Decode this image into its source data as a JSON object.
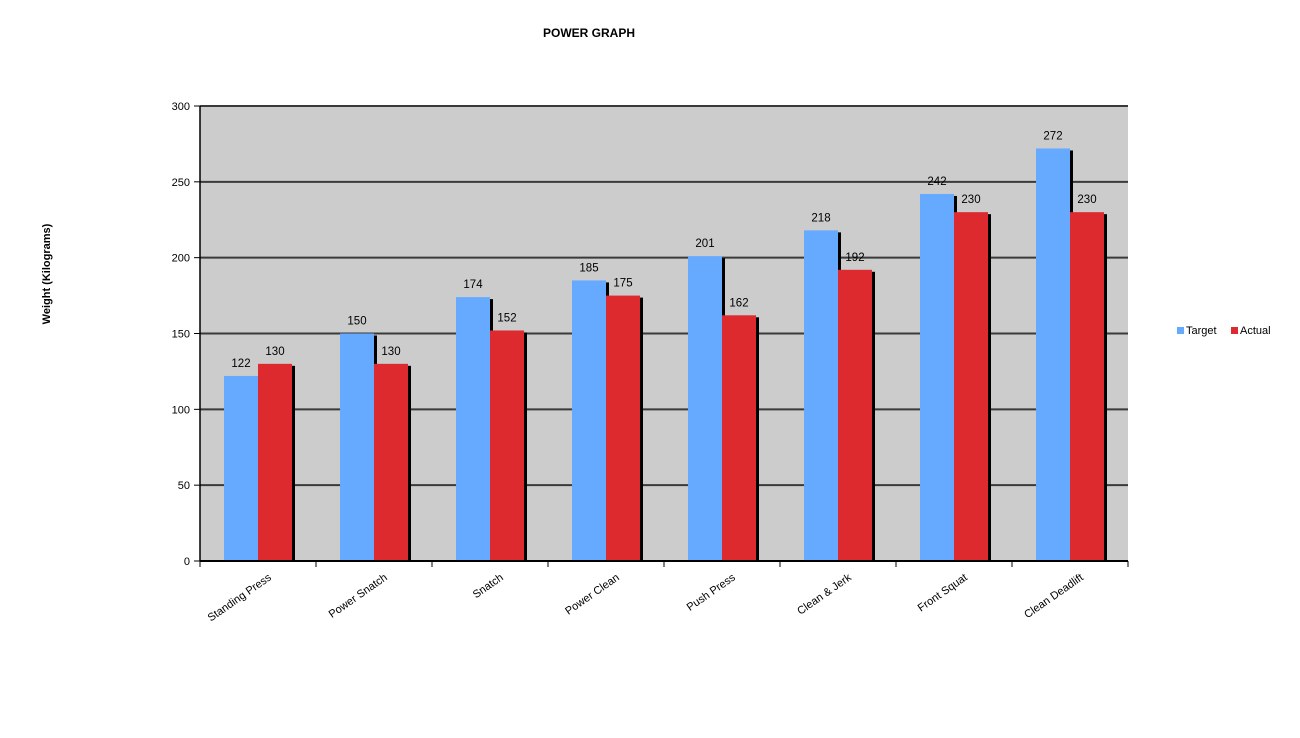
{
  "chart_data": {
    "type": "bar",
    "title": "POWER GRAPH",
    "xlabel": "",
    "ylabel": "Weight (Kilograms)",
    "ylim": [
      0,
      300
    ],
    "yticks": [
      0,
      50,
      100,
      150,
      200,
      250,
      300
    ],
    "grid": true,
    "legend_position": "right",
    "categories": [
      "Standing Press",
      "Power Snatch",
      "Snatch",
      "Power Clean",
      "Push Press",
      "Clean & Jerk",
      "Front Squat",
      "Clean Deadlift"
    ],
    "series": [
      {
        "name": "Target",
        "color": "#66aaff",
        "values": [
          122,
          150,
          174,
          185,
          201,
          218,
          242,
          272
        ]
      },
      {
        "name": "Actual",
        "color": "#dd2a2e",
        "values": [
          130,
          130,
          152,
          175,
          162,
          192,
          230,
          230
        ]
      }
    ],
    "plot_background": "#cccccc"
  }
}
